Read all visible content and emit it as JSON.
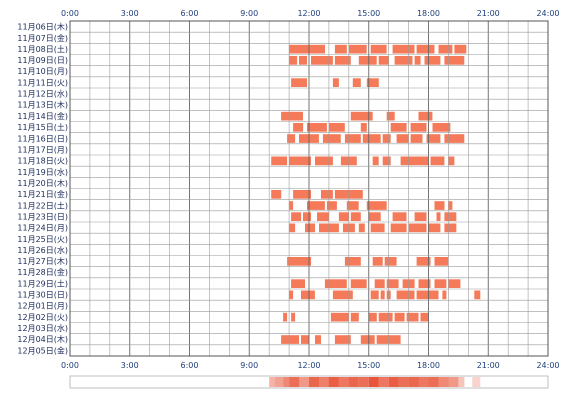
{
  "chart_data": {
    "type": "timeline",
    "xlabel": "",
    "ylabel": "",
    "x_ticks": [
      "0:00",
      "3:00",
      "6:00",
      "9:00",
      "12:00",
      "15:00",
      "18:00",
      "21:00",
      "24:00"
    ],
    "xlim_hours": [
      0,
      24
    ],
    "grid": true,
    "colors": {
      "bar": "#f47a5a",
      "bar_edge": "#e8553a",
      "grid": "#9a9a9a",
      "tick": "#1f3d7a"
    },
    "rows": [
      {
        "label": "11月06日(木)",
        "segments": []
      },
      {
        "label": "11月07日(金)",
        "segments": []
      },
      {
        "label": "11月08日(土)",
        "segments": [
          [
            11.0,
            12.8
          ],
          [
            13.3,
            13.9
          ],
          [
            14.0,
            14.9
          ],
          [
            15.1,
            15.9
          ],
          [
            16.2,
            17.3
          ],
          [
            17.4,
            18.3
          ],
          [
            18.5,
            19.2
          ],
          [
            19.3,
            19.9
          ]
        ]
      },
      {
        "label": "11月09日(日)",
        "segments": [
          [
            11.0,
            11.4
          ],
          [
            11.5,
            11.9
          ],
          [
            12.1,
            13.2
          ],
          [
            13.3,
            14.1
          ],
          [
            14.5,
            15.4
          ],
          [
            15.5,
            16.0
          ],
          [
            16.3,
            17.2
          ],
          [
            17.3,
            17.6
          ],
          [
            17.8,
            18.6
          ],
          [
            18.8,
            19.8
          ]
        ]
      },
      {
        "label": "11月10日(月)",
        "segments": []
      },
      {
        "label": "11月11日(火)",
        "segments": [
          [
            11.1,
            11.9
          ],
          [
            13.2,
            13.5
          ],
          [
            14.2,
            14.6
          ],
          [
            14.9,
            15.5
          ]
        ]
      },
      {
        "label": "11月12日(水)",
        "segments": []
      },
      {
        "label": "11月13日(木)",
        "segments": []
      },
      {
        "label": "11月14日(金)",
        "segments": [
          [
            10.6,
            11.7
          ],
          [
            14.1,
            15.2
          ],
          [
            15.9,
            16.3
          ],
          [
            17.5,
            18.2
          ]
        ]
      },
      {
        "label": "11月15日(土)",
        "segments": [
          [
            11.2,
            11.7
          ],
          [
            11.9,
            12.9
          ],
          [
            13.0,
            13.8
          ],
          [
            14.6,
            14.9
          ],
          [
            16.1,
            16.9
          ],
          [
            17.1,
            17.9
          ],
          [
            18.2,
            19.1
          ]
        ]
      },
      {
        "label": "11月16日(日)",
        "segments": [
          [
            10.9,
            11.3
          ],
          [
            11.5,
            12.5
          ],
          [
            12.7,
            13.6
          ],
          [
            13.8,
            14.6
          ],
          [
            14.7,
            15.6
          ],
          [
            15.7,
            16.1
          ],
          [
            16.4,
            17.0
          ],
          [
            17.1,
            17.7
          ],
          [
            17.9,
            18.6
          ],
          [
            18.8,
            19.8
          ]
        ]
      },
      {
        "label": "11月17日(月)",
        "segments": []
      },
      {
        "label": "11月18日(火)",
        "segments": [
          [
            10.1,
            10.9
          ],
          [
            11.0,
            12.1
          ],
          [
            12.3,
            13.2
          ],
          [
            13.6,
            14.4
          ],
          [
            15.2,
            15.5
          ],
          [
            15.7,
            16.1
          ],
          [
            16.6,
            18.0
          ],
          [
            18.1,
            18.8
          ],
          [
            19.0,
            19.3
          ]
        ]
      },
      {
        "label": "11月19日(水)",
        "segments": []
      },
      {
        "label": "11月20日(木)",
        "segments": []
      },
      {
        "label": "11月21日(金)",
        "segments": [
          [
            10.1,
            10.6
          ],
          [
            11.2,
            12.1
          ],
          [
            12.6,
            13.2
          ],
          [
            13.3,
            14.7
          ]
        ]
      },
      {
        "label": "11月22日(土)",
        "segments": [
          [
            11.0,
            11.2
          ],
          [
            11.9,
            12.8
          ],
          [
            12.9,
            13.4
          ],
          [
            13.9,
            14.5
          ],
          [
            14.9,
            15.9
          ],
          [
            18.3,
            18.8
          ],
          [
            19.0,
            19.2
          ]
        ]
      },
      {
        "label": "11月23日(日)",
        "segments": [
          [
            11.1,
            11.6
          ],
          [
            11.7,
            12.1
          ],
          [
            12.4,
            13.0
          ],
          [
            13.5,
            14.0
          ],
          [
            14.1,
            14.6
          ],
          [
            15.0,
            15.6
          ],
          [
            16.2,
            16.9
          ],
          [
            17.3,
            17.9
          ],
          [
            18.4,
            18.6
          ],
          [
            18.8,
            19.4
          ]
        ]
      },
      {
        "label": "11月24日(月)",
        "segments": [
          [
            11.0,
            11.3
          ],
          [
            11.8,
            12.3
          ],
          [
            12.5,
            13.5
          ],
          [
            13.7,
            14.3
          ],
          [
            14.5,
            14.8
          ],
          [
            15.1,
            15.8
          ],
          [
            16.1,
            16.9
          ],
          [
            17.0,
            17.9
          ],
          [
            18.0,
            18.6
          ],
          [
            18.8,
            19.4
          ]
        ]
      },
      {
        "label": "11月25日(火)",
        "segments": []
      },
      {
        "label": "11月26日(水)",
        "segments": []
      },
      {
        "label": "11月27日(木)",
        "segments": [
          [
            10.9,
            11.9
          ],
          [
            11.9,
            12.1
          ],
          [
            13.8,
            14.6
          ],
          [
            15.2,
            15.7
          ],
          [
            15.8,
            16.4
          ],
          [
            17.4,
            18.1
          ],
          [
            18.3,
            19.0
          ]
        ]
      },
      {
        "label": "11月28日(金)",
        "segments": []
      },
      {
        "label": "11月29日(土)",
        "segments": [
          [
            11.1,
            11.8
          ],
          [
            12.8,
            13.9
          ],
          [
            14.1,
            14.9
          ],
          [
            15.3,
            15.8
          ],
          [
            15.9,
            16.5
          ],
          [
            16.7,
            17.3
          ],
          [
            17.5,
            18.1
          ],
          [
            18.3,
            18.9
          ],
          [
            19.0,
            19.6
          ]
        ]
      },
      {
        "label": "11月30日(日)",
        "segments": [
          [
            11.0,
            11.2
          ],
          [
            11.6,
            12.3
          ],
          [
            13.2,
            14.2
          ],
          [
            15.1,
            15.5
          ],
          [
            15.6,
            15.8
          ],
          [
            15.9,
            16.1
          ],
          [
            16.4,
            17.3
          ],
          [
            17.4,
            18.5
          ],
          [
            18.7,
            18.9
          ],
          [
            20.3,
            20.6
          ]
        ]
      },
      {
        "label": "12月01日(月)",
        "segments": []
      },
      {
        "label": "12月02日(火)",
        "segments": [
          [
            10.7,
            10.9
          ],
          [
            11.1,
            11.3
          ],
          [
            13.1,
            14.0
          ],
          [
            14.1,
            14.5
          ],
          [
            15.0,
            15.4
          ],
          [
            15.5,
            16.2
          ],
          [
            16.3,
            16.8
          ],
          [
            16.9,
            17.5
          ],
          [
            17.6,
            18.0
          ]
        ]
      },
      {
        "label": "12月03日(水)",
        "segments": []
      },
      {
        "label": "12月04日(木)",
        "segments": [
          [
            10.6,
            11.5
          ],
          [
            11.6,
            12.0
          ],
          [
            12.3,
            12.6
          ],
          [
            13.3,
            14.1
          ],
          [
            14.6,
            15.3
          ],
          [
            15.4,
            16.6
          ]
        ]
      },
      {
        "label": "12月05日(金)",
        "segments": []
      }
    ],
    "summary_strip": [
      [
        10.0,
        10.3,
        0.45
      ],
      [
        10.3,
        10.7,
        0.55
      ],
      [
        10.7,
        11.0,
        0.7
      ],
      [
        11.0,
        11.5,
        0.85
      ],
      [
        11.5,
        12.0,
        0.6
      ],
      [
        12.0,
        12.5,
        0.9
      ],
      [
        12.5,
        13.0,
        0.75
      ],
      [
        13.0,
        13.5,
        0.95
      ],
      [
        13.5,
        14.0,
        0.8
      ],
      [
        14.0,
        14.5,
        0.9
      ],
      [
        14.5,
        15.0,
        0.85
      ],
      [
        15.0,
        15.5,
        1.0
      ],
      [
        15.5,
        16.0,
        0.8
      ],
      [
        16.0,
        16.5,
        0.95
      ],
      [
        16.5,
        17.0,
        0.85
      ],
      [
        17.0,
        17.5,
        0.9
      ],
      [
        17.5,
        18.0,
        0.8
      ],
      [
        18.0,
        18.5,
        0.85
      ],
      [
        18.5,
        19.0,
        0.7
      ],
      [
        19.0,
        19.5,
        0.6
      ],
      [
        19.5,
        19.8,
        0.35
      ],
      [
        20.2,
        20.6,
        0.25
      ]
    ]
  }
}
